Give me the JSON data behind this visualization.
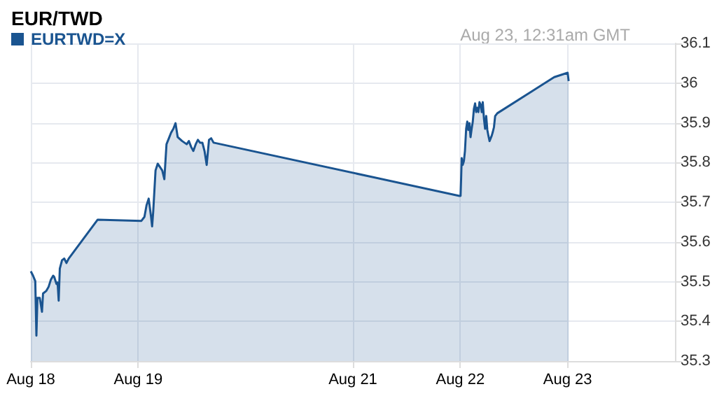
{
  "chart_data": {
    "type": "area",
    "title": "EUR/TWD",
    "annotations": [
      "Aug 23, 12:31am GMT"
    ],
    "legend": "top left",
    "grid": true,
    "marker": "none",
    "line_style": "solid",
    "xlim": [
      "--08-18",
      "--08-24"
    ],
    "xticks": [
      {
        "value": "--08-18",
        "label": "Aug 18"
      },
      {
        "value": "--08-19",
        "label": "Aug 19"
      },
      {
        "value": "--08-21",
        "label": "Aug 21"
      },
      {
        "value": "--08-22",
        "label": "Aug 22"
      },
      {
        "value": "--08-23",
        "label": "Aug 23"
      }
    ],
    "ylim": [
      35.3,
      36.1
    ],
    "yticks": [
      35.3,
      35.4,
      35.5,
      35.6,
      35.7,
      35.8,
      35.9,
      36.0,
      36.1
    ],
    "series": [
      {
        "name": "EURTWD=X",
        "color": "#1a5490",
        "x": [
          "--08-18T00:00",
          "--08-18T00:30",
          "--08-18T01:00",
          "--08-18T01:15",
          "--08-18T01:29",
          "--08-18T02:00",
          "--08-18T02:30",
          "--08-18T02:44",
          "--08-18T03:29",
          "--08-18T03:59",
          "--08-18T04:29",
          "--08-18T05:00",
          "--08-18T05:14",
          "--08-18T05:44",
          "--08-18T05:59",
          "--08-18T06:14",
          "--08-18T06:29",
          "--08-18T06:59",
          "--08-18T07:29",
          "--08-18T07:58",
          "--08-18T08:28",
          "--08-18T14:57",
          "--08-19T00:43",
          "--08-19T01:24",
          "--08-19T01:52",
          "--08-19T02:21",
          "--08-19T02:53",
          "--08-19T03:07",
          "--08-19T03:22",
          "--08-19T03:53",
          "--08-19T04:22",
          "--08-19T05:23",
          "--08-19T05:51",
          "--08-19T06:20",
          "--08-19T06:52",
          "--08-19T07:21",
          "--08-19T07:52",
          "--08-19T08:21",
          "--08-19T08:50",
          "--08-19T09:50",
          "--08-19T10:51",
          "--08-19T11:20",
          "--08-19T11:51",
          "--08-19T12:20",
          "--08-19T12:52",
          "--08-19T13:21",
          "--08-19T13:49",
          "--08-19T14:21",
          "--08-19T14:50",
          "--08-19T15:19",
          "--08-19T15:50",
          "--08-19T16:19",
          "--08-19T16:51",
          "--08-21T23:48",
          "--08-22T00:04",
          "--08-22T00:12",
          "--08-22T00:19",
          "--08-22T00:33",
          "--08-22T00:49",
          "--08-22T01:03",
          "--08-22T01:19",
          "--08-22T01:34",
          "--08-22T01:48",
          "--08-22T02:04",
          "--08-22T02:18",
          "--08-22T02:33",
          "--08-22T02:48",
          "--08-22T03:03",
          "--08-22T03:19",
          "--08-22T03:33",
          "--08-22T03:48",
          "--08-22T04:03",
          "--08-22T04:18",
          "--08-22T04:34",
          "--08-22T04:48",
          "--08-22T05:02",
          "--08-22T05:18",
          "--08-22T05:33",
          "--08-22T05:48",
          "--08-22T06:03",
          "--08-22T06:17",
          "--08-22T06:33",
          "--08-22T06:48",
          "--08-22T07:03",
          "--08-22T07:18",
          "--08-22T07:32",
          "--08-22T07:48",
          "--08-22T08:17",
          "--08-22T21:00",
          "--08-23T00:00",
          "--08-23T00:14"
        ],
        "values": [
          35.526,
          35.515,
          35.501,
          35.364,
          35.459,
          35.459,
          35.424,
          35.47,
          35.477,
          35.487,
          35.505,
          35.515,
          35.512,
          35.494,
          35.498,
          35.452,
          35.533,
          35.554,
          35.558,
          35.547,
          35.558,
          35.656,
          35.653,
          35.663,
          35.692,
          35.709,
          35.663,
          35.639,
          35.677,
          35.78,
          35.797,
          35.78,
          35.758,
          35.846,
          35.861,
          35.875,
          35.885,
          35.899,
          35.864,
          35.854,
          35.846,
          35.854,
          35.839,
          35.829,
          35.846,
          35.857,
          35.85,
          35.85,
          35.829,
          35.794,
          35.857,
          35.861,
          35.85,
          35.716,
          35.716,
          35.762,
          35.811,
          35.794,
          35.804,
          35.829,
          35.885,
          35.903,
          35.882,
          35.899,
          35.864,
          35.885,
          35.903,
          35.935,
          35.949,
          35.927,
          35.938,
          35.927,
          35.952,
          35.945,
          35.927,
          35.952,
          35.91,
          35.885,
          35.917,
          35.882,
          35.868,
          35.854,
          35.861,
          35.868,
          35.878,
          35.889,
          35.917,
          35.924,
          36.015,
          36.026,
          36.005
        ]
      }
    ]
  }
}
